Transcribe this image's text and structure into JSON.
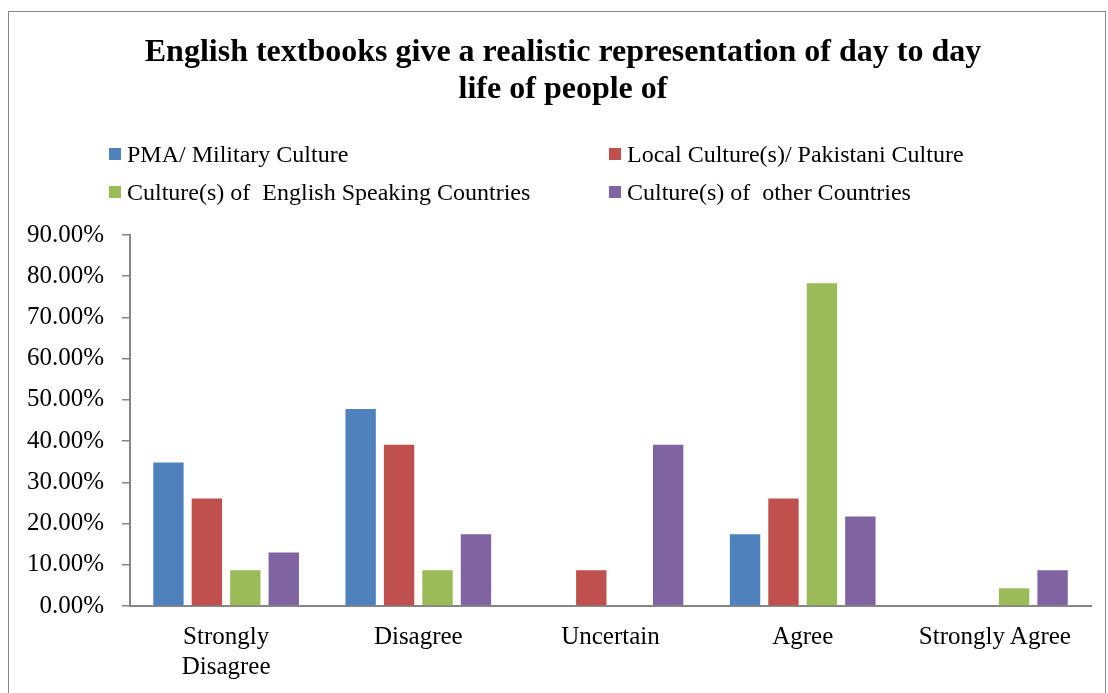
{
  "chart_data": {
    "type": "bar",
    "title": "English textbooks give a realistic representation of day to day life of people of",
    "categories": [
      "Strongly Disagree",
      "Disagree",
      "Uncertain",
      "Agree",
      "Strongly Agree"
    ],
    "series": [
      {
        "name": "PMA/ Military Culture",
        "color": "#4f81bd",
        "values": [
          34.8,
          47.8,
          0,
          17.4,
          0
        ]
      },
      {
        "name": "Local Culture(s)/ Pakistani Culture",
        "color": "#c0504d",
        "values": [
          26.1,
          39.1,
          8.7,
          26.1,
          0
        ]
      },
      {
        "name": "Culture(s) of  English Speaking Countries",
        "color": "#9bbb59",
        "values": [
          8.7,
          8.7,
          0,
          78.3,
          4.3
        ]
      },
      {
        "name": "Culture(s) of  other Countries",
        "color": "#8064a2",
        "values": [
          13.0,
          17.4,
          39.1,
          21.7,
          8.7
        ]
      }
    ],
    "ylim": [
      0,
      90
    ],
    "yticks": [
      {
        "value": 0,
        "label": "0.00%"
      },
      {
        "value": 10,
        "label": "10.00%"
      },
      {
        "value": 20,
        "label": "20.00%"
      },
      {
        "value": 30,
        "label": "30.00%"
      },
      {
        "value": 40,
        "label": "40.00%"
      },
      {
        "value": 50,
        "label": "50.00%"
      },
      {
        "value": 60,
        "label": "60.00%"
      },
      {
        "value": 70,
        "label": "70.00%"
      },
      {
        "value": 80,
        "label": "80.00%"
      },
      {
        "value": 90,
        "label": "90.00%"
      }
    ],
    "legend": "top"
  }
}
